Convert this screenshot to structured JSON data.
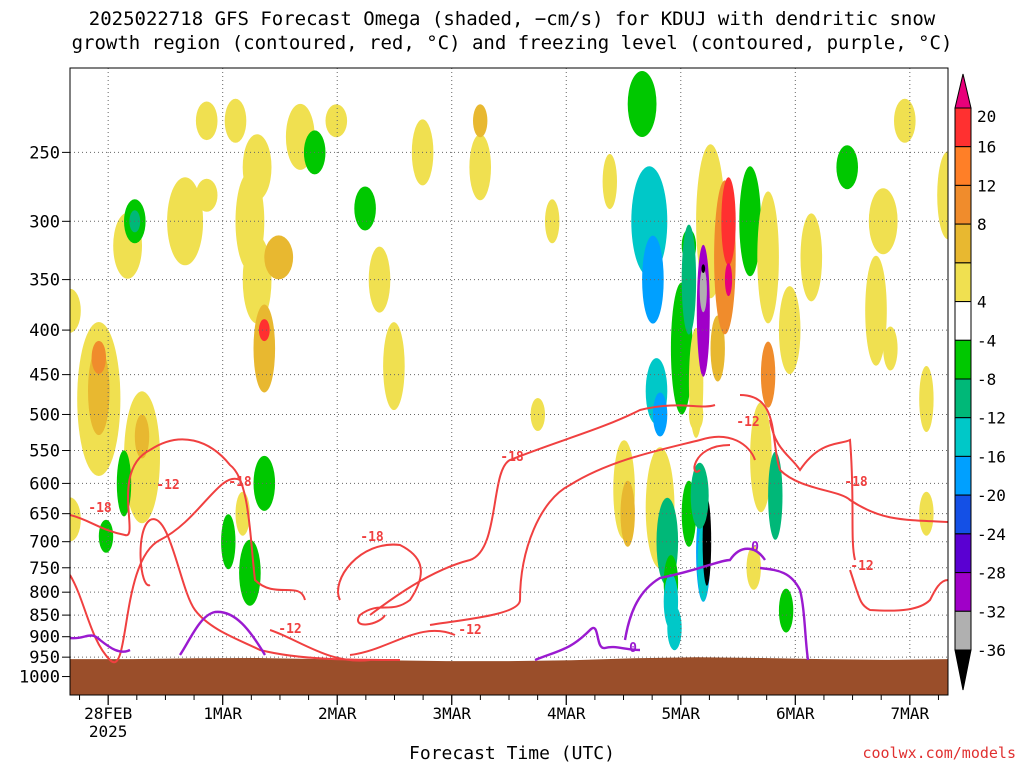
{
  "title_line1": "2025022718 GFS Forecast Omega (shaded, −cm/s) for KDUJ with dendritic snow",
  "title_line2": "growth region (contoured, red, °C) and freezing level (contoured, purple, °C)",
  "xlabel": "Forecast Time (UTC)",
  "credit": "coolwx.com/models",
  "chart_data": {
    "type": "heatmap",
    "y_axis": {
      "ticks": [
        250,
        300,
        350,
        400,
        450,
        500,
        550,
        600,
        650,
        700,
        750,
        800,
        850,
        900,
        950,
        1000
      ],
      "range": [
        200,
        1050
      ],
      "scale": "log-pressure"
    },
    "x_axis": {
      "ticks": [
        "28FEB",
        "1MAR",
        "2MAR",
        "3MAR",
        "4MAR",
        "5MAR",
        "6MAR",
        "7MAR"
      ],
      "year_label": "2025",
      "range_hours": [
        0,
        184
      ]
    },
    "colorbar": {
      "labels": [
        20,
        16,
        12,
        8,
        4,
        -4,
        -8,
        -12,
        -16,
        -20,
        -24,
        -28,
        -32,
        -36
      ],
      "colors": [
        "#e8007a",
        "#ff3030",
        "#ff7f27",
        "#f08c2c",
        "#e8b830",
        "#f0e050",
        "#ffffff",
        "#00c800",
        "#00b878",
        "#00c8c8",
        "#00a0ff",
        "#1450e6",
        "#5a00d2",
        "#a000c8",
        "#b0b0b0",
        "#000000"
      ]
    },
    "contours": {
      "dgz_labels": [
        "-18",
        "-12",
        "-18",
        "-12",
        "-18",
        "-18",
        "-12",
        "-12",
        "-18",
        "-12"
      ],
      "freezing_labels": [
        "0",
        "0"
      ]
    }
  }
}
